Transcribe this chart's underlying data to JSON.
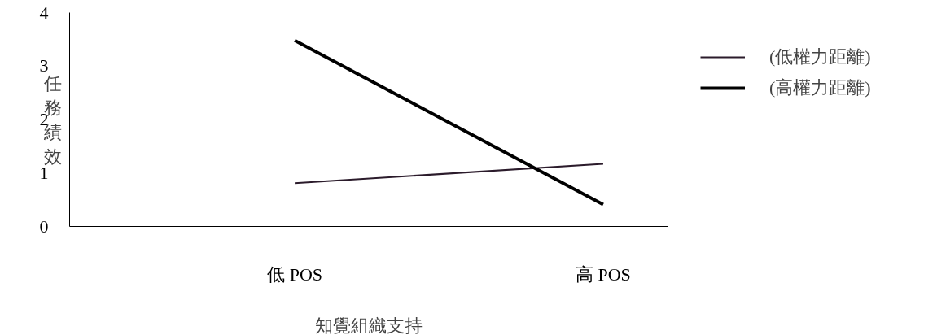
{
  "chart_data": {
    "type": "line",
    "xlabel": "知覺組織支持",
    "ylabel": "任務績效",
    "categories": [
      "低 POS",
      "高 POS"
    ],
    "ylim": [
      0,
      4
    ],
    "yticks": [
      0,
      1,
      2,
      3,
      4
    ],
    "series": [
      {
        "name": "(低權力距離)",
        "color": "#2b1b2b",
        "values": [
          0.81,
          1.17
        ]
      },
      {
        "name": "(高權力距離)",
        "color": "#000000",
        "values": [
          3.48,
          0.41
        ]
      }
    ],
    "grid": false,
    "legend": "right",
    "marker": "none",
    "line_style": "solid"
  }
}
